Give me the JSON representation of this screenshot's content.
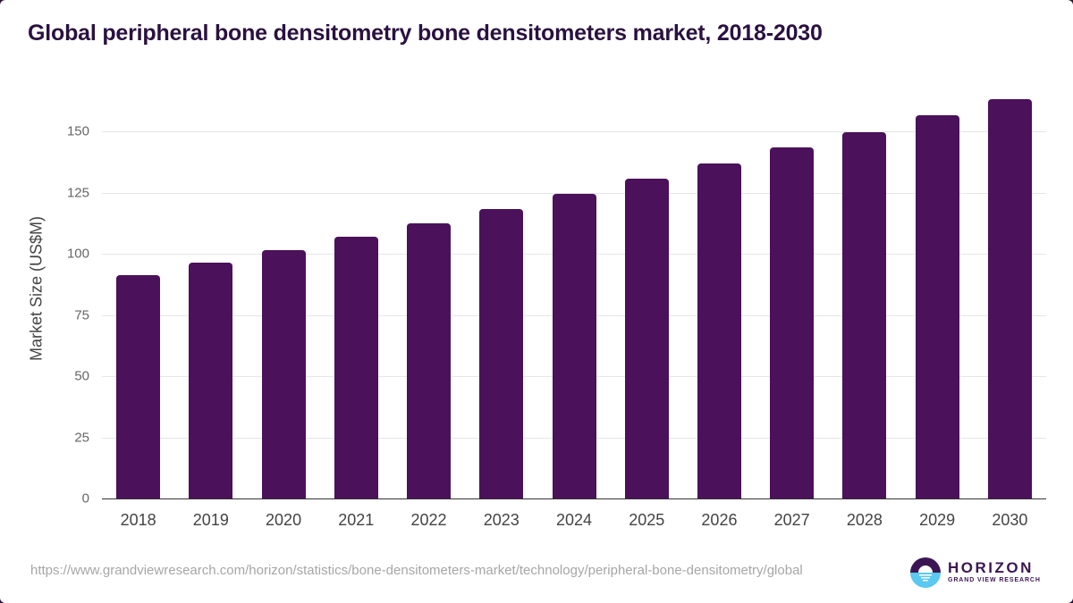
{
  "title": "Global peripheral bone densitometry bone densitometers market, 2018-2030",
  "source_url": "https://www.grandviewresearch.com/horizon/statistics/bone-densitometers-market/technology/peripheral-bone-densitometry/global",
  "logo": {
    "name": "HORIZON",
    "subtitle": "GRAND VIEW RESEARCH",
    "colors": {
      "top": "#3b1654",
      "bottom": "#5ac8f0"
    }
  },
  "colors": {
    "bar": "#4b115a",
    "title": "#2a1140",
    "grid": "#e6e6e6"
  },
  "chart_data": {
    "type": "bar",
    "title": "Global peripheral bone densitometry bone densitometers market, 2018-2030",
    "xlabel": "",
    "ylabel": "Market Size (US$M)",
    "categories": [
      "2018",
      "2019",
      "2020",
      "2021",
      "2022",
      "2023",
      "2024",
      "2025",
      "2026",
      "2027",
      "2028",
      "2029",
      "2030"
    ],
    "values": [
      91.2,
      96.4,
      101.5,
      106.9,
      112.4,
      118.2,
      124.5,
      130.7,
      136.9,
      143.4,
      149.6,
      156.6,
      163.1
    ],
    "yticks": [
      "0",
      "25",
      "50",
      "75",
      "100",
      "125",
      "150"
    ],
    "ylim": [
      0,
      167
    ],
    "grid": true,
    "legend": "none"
  }
}
